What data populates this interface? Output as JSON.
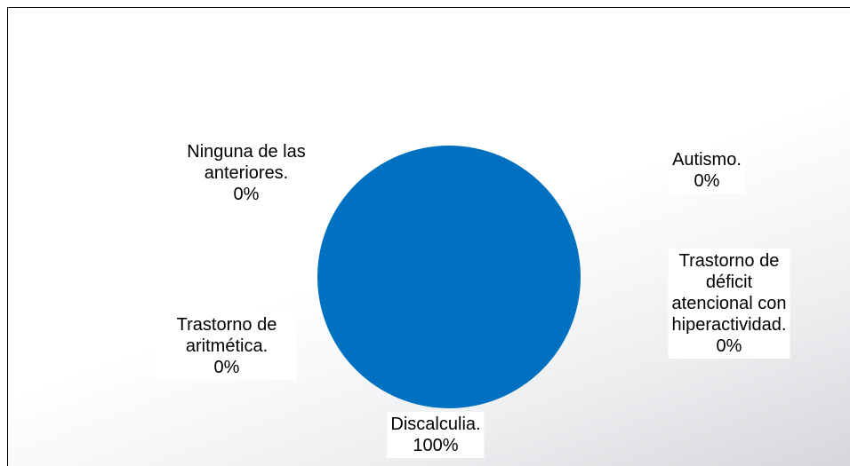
{
  "chart_data": {
    "type": "pie",
    "categories": [
      "Autismo.",
      "Trastorno de déficit atencional con hiperactividad.",
      "Discalculia.",
      "Trastorno de aritmética.",
      "Ninguna de las anteriores."
    ],
    "values": [
      0,
      0,
      100,
      0,
      0
    ],
    "value_labels": [
      "0%",
      "0%",
      "100%",
      "0%",
      "0%"
    ],
    "color": "#0070c0"
  }
}
